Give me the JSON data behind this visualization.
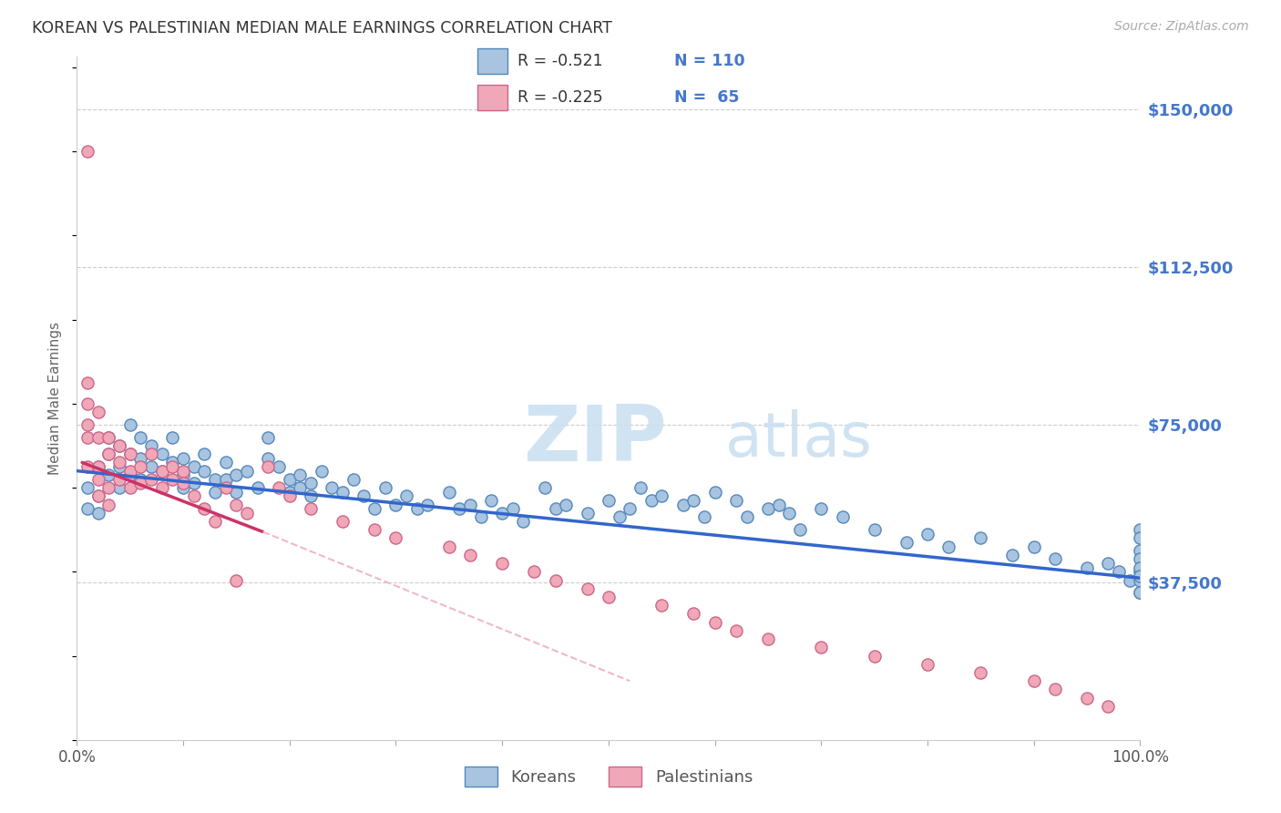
{
  "title": "KOREAN VS PALESTINIAN MEDIAN MALE EARNINGS CORRELATION CHART",
  "source": "Source: ZipAtlas.com",
  "ylabel": "Median Male Earnings",
  "watermark_zip": "ZIP",
  "watermark_atlas": "atlas",
  "y_tick_labels": [
    "$37,500",
    "$75,000",
    "$112,500",
    "$150,000"
  ],
  "y_tick_values": [
    37500,
    75000,
    112500,
    150000
  ],
  "ylim": [
    0,
    162500
  ],
  "xlim": [
    0,
    1.0
  ],
  "korean_color": "#a8c4e0",
  "korean_edge_color": "#5588bb",
  "palestinian_color": "#f0a8b8",
  "palestinian_edge_color": "#cc6688",
  "trend_korean_color": "#3366cc",
  "trend_palestinian_color": "#cc3366",
  "dashed_color": "#f0b8c8",
  "legend_r_korean": "R = -0.521",
  "legend_n_korean": "N = 110",
  "legend_r_palestinian": "R = -0.225",
  "legend_n_palestinian": "N =  65",
  "legend_label_korean": "Koreans",
  "legend_label_palestinian": "Palestinians",
  "grid_color": "#cccccc",
  "background_color": "#ffffff",
  "title_color": "#333333",
  "right_tick_color": "#4477cc",
  "korean_scatter_x": [
    0.01,
    0.01,
    0.02,
    0.02,
    0.02,
    0.03,
    0.03,
    0.03,
    0.04,
    0.04,
    0.04,
    0.05,
    0.05,
    0.05,
    0.06,
    0.06,
    0.06,
    0.07,
    0.07,
    0.08,
    0.08,
    0.09,
    0.09,
    0.1,
    0.1,
    0.1,
    0.11,
    0.11,
    0.12,
    0.12,
    0.13,
    0.13,
    0.14,
    0.14,
    0.15,
    0.15,
    0.16,
    0.17,
    0.18,
    0.18,
    0.19,
    0.2,
    0.2,
    0.21,
    0.21,
    0.22,
    0.22,
    0.23,
    0.24,
    0.25,
    0.26,
    0.27,
    0.28,
    0.29,
    0.3,
    0.31,
    0.32,
    0.33,
    0.35,
    0.36,
    0.37,
    0.38,
    0.39,
    0.4,
    0.41,
    0.42,
    0.44,
    0.45,
    0.46,
    0.48,
    0.5,
    0.51,
    0.52,
    0.53,
    0.54,
    0.55,
    0.57,
    0.58,
    0.59,
    0.6,
    0.62,
    0.63,
    0.65,
    0.66,
    0.67,
    0.68,
    0.7,
    0.72,
    0.75,
    0.78,
    0.8,
    0.82,
    0.85,
    0.88,
    0.9,
    0.92,
    0.95,
    0.97,
    0.98,
    0.99,
    1.0,
    1.0,
    1.0,
    1.0,
    1.0,
    1.0,
    1.0,
    1.0,
    1.0,
    1.0
  ],
  "korean_scatter_y": [
    60000,
    55000,
    65000,
    58000,
    54000,
    72000,
    68000,
    63000,
    70000,
    65000,
    60000,
    75000,
    68000,
    63000,
    72000,
    67000,
    62000,
    70000,
    65000,
    68000,
    64000,
    72000,
    66000,
    67000,
    63000,
    60000,
    65000,
    61000,
    68000,
    64000,
    62000,
    59000,
    66000,
    62000,
    63000,
    59000,
    64000,
    60000,
    72000,
    67000,
    65000,
    62000,
    59000,
    63000,
    60000,
    61000,
    58000,
    64000,
    60000,
    59000,
    62000,
    58000,
    55000,
    60000,
    56000,
    58000,
    55000,
    56000,
    59000,
    55000,
    56000,
    53000,
    57000,
    54000,
    55000,
    52000,
    60000,
    55000,
    56000,
    54000,
    57000,
    53000,
    55000,
    60000,
    57000,
    58000,
    56000,
    57000,
    53000,
    59000,
    57000,
    53000,
    55000,
    56000,
    54000,
    50000,
    55000,
    53000,
    50000,
    47000,
    49000,
    46000,
    48000,
    44000,
    46000,
    43000,
    41000,
    42000,
    40000,
    38000,
    35000,
    40000,
    38000,
    35000,
    50000,
    48000,
    45000,
    43000,
    41000,
    39000
  ],
  "palestinian_scatter_x": [
    0.01,
    0.01,
    0.01,
    0.01,
    0.01,
    0.01,
    0.02,
    0.02,
    0.02,
    0.02,
    0.02,
    0.03,
    0.03,
    0.03,
    0.03,
    0.04,
    0.04,
    0.04,
    0.05,
    0.05,
    0.05,
    0.06,
    0.06,
    0.07,
    0.07,
    0.08,
    0.08,
    0.09,
    0.09,
    0.1,
    0.1,
    0.11,
    0.12,
    0.13,
    0.14,
    0.15,
    0.16,
    0.18,
    0.19,
    0.2,
    0.22,
    0.25,
    0.28,
    0.3,
    0.35,
    0.37,
    0.4,
    0.43,
    0.45,
    0.48,
    0.5,
    0.55,
    0.58,
    0.6,
    0.62,
    0.65,
    0.7,
    0.75,
    0.8,
    0.85,
    0.9,
    0.92,
    0.95,
    0.97,
    0.15
  ],
  "palestinian_scatter_y": [
    140000,
    85000,
    80000,
    75000,
    72000,
    65000,
    78000,
    72000,
    65000,
    62000,
    58000,
    72000,
    68000,
    60000,
    56000,
    70000,
    66000,
    62000,
    68000,
    64000,
    60000,
    65000,
    61000,
    68000,
    62000,
    64000,
    60000,
    65000,
    62000,
    64000,
    61000,
    58000,
    55000,
    52000,
    60000,
    56000,
    54000,
    65000,
    60000,
    58000,
    55000,
    52000,
    50000,
    48000,
    46000,
    44000,
    42000,
    40000,
    38000,
    36000,
    34000,
    32000,
    30000,
    28000,
    26000,
    24000,
    22000,
    20000,
    18000,
    16000,
    14000,
    12000,
    10000,
    8000,
    38000
  ]
}
